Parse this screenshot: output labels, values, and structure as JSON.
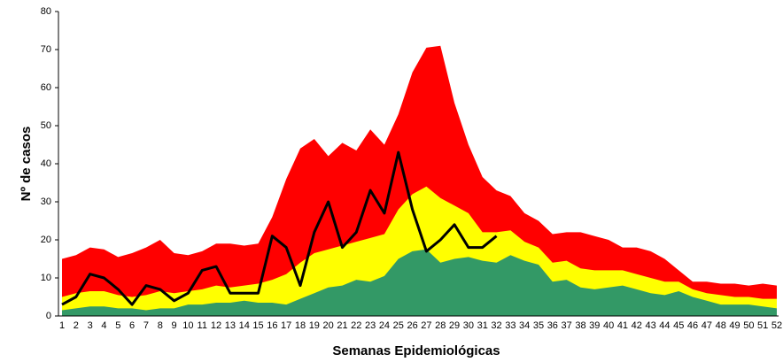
{
  "chart_data": {
    "type": "area",
    "x_label": "Semanas Epidemiológicas",
    "y_label": "Nº de casos",
    "categories": [
      "1",
      "2",
      "3",
      "4",
      "5",
      "6",
      "7",
      "8",
      "9",
      "10",
      "11",
      "12",
      "13",
      "14",
      "15",
      "16",
      "17",
      "18",
      "19",
      "20",
      "21",
      "22",
      "23",
      "24",
      "25",
      "26",
      "27",
      "28",
      "29",
      "30",
      "31",
      "32",
      "33",
      "34",
      "35",
      "36",
      "37",
      "38",
      "39",
      "40",
      "41",
      "42",
      "43",
      "44",
      "45",
      "46",
      "47",
      "48",
      "49",
      "50",
      "51",
      "52"
    ],
    "ylim": [
      0,
      80
    ],
    "yticks": [
      0,
      10,
      20,
      30,
      40,
      50,
      60,
      70,
      80
    ],
    "series": [
      {
        "color": "#ff0000",
        "values": [
          15,
          16,
          18,
          17.5,
          15.5,
          16.5,
          18,
          20,
          16.5,
          16,
          17,
          19,
          19,
          18.5,
          19,
          26,
          36,
          44,
          46.5,
          42,
          45.5,
          43.5,
          49,
          45,
          53,
          64,
          70.5,
          71,
          56,
          45,
          36.5,
          33,
          31.5,
          27,
          25,
          21.5,
          22,
          22,
          21,
          20,
          18,
          18,
          17,
          15,
          12,
          9,
          9,
          8.5,
          8.5,
          8,
          8.5,
          8
        ]
      },
      {
        "color": "#ffff00",
        "values": [
          5,
          6,
          6.5,
          6.5,
          5.5,
          5,
          5.5,
          6.5,
          6,
          6.5,
          7,
          8,
          7.5,
          8,
          8.5,
          9.5,
          11,
          14,
          16.5,
          17.5,
          18.5,
          19.5,
          20.5,
          21.5,
          28,
          32,
          34,
          31,
          29,
          27,
          22,
          22,
          22.5,
          19.5,
          18,
          14,
          14.5,
          12.5,
          12,
          12,
          12,
          11,
          10,
          9,
          9,
          7,
          6,
          5.5,
          5,
          5,
          4.5,
          4.5
        ]
      },
      {
        "color": "#339966",
        "values": [
          1.5,
          2,
          2.5,
          2.5,
          2,
          2,
          1.5,
          2,
          2,
          3,
          3,
          3.5,
          3.5,
          4,
          3.5,
          3.5,
          3,
          4.5,
          6,
          7.5,
          8,
          9.5,
          9,
          10.5,
          15,
          17,
          17.5,
          14,
          15,
          15.5,
          14.5,
          14,
          16,
          14.5,
          13.5,
          9,
          9.5,
          7.5,
          7,
          7.5,
          8,
          7,
          6,
          5.5,
          6.5,
          5,
          4,
          3,
          3,
          3,
          2.5,
          2
        ]
      },
      {
        "type": "line",
        "color": "#000000",
        "values": [
          3,
          5,
          11,
          10,
          7,
          3,
          8,
          7,
          4,
          6,
          12,
          13,
          6,
          6,
          6,
          21,
          18,
          8,
          22,
          30,
          18,
          22,
          33,
          27,
          43,
          28,
          17,
          20,
          24,
          18,
          18,
          21,
          null,
          null,
          null,
          null,
          null,
          null,
          null,
          null,
          null,
          null,
          null,
          null,
          null,
          null,
          null,
          null,
          null,
          null,
          null,
          null
        ]
      }
    ]
  }
}
